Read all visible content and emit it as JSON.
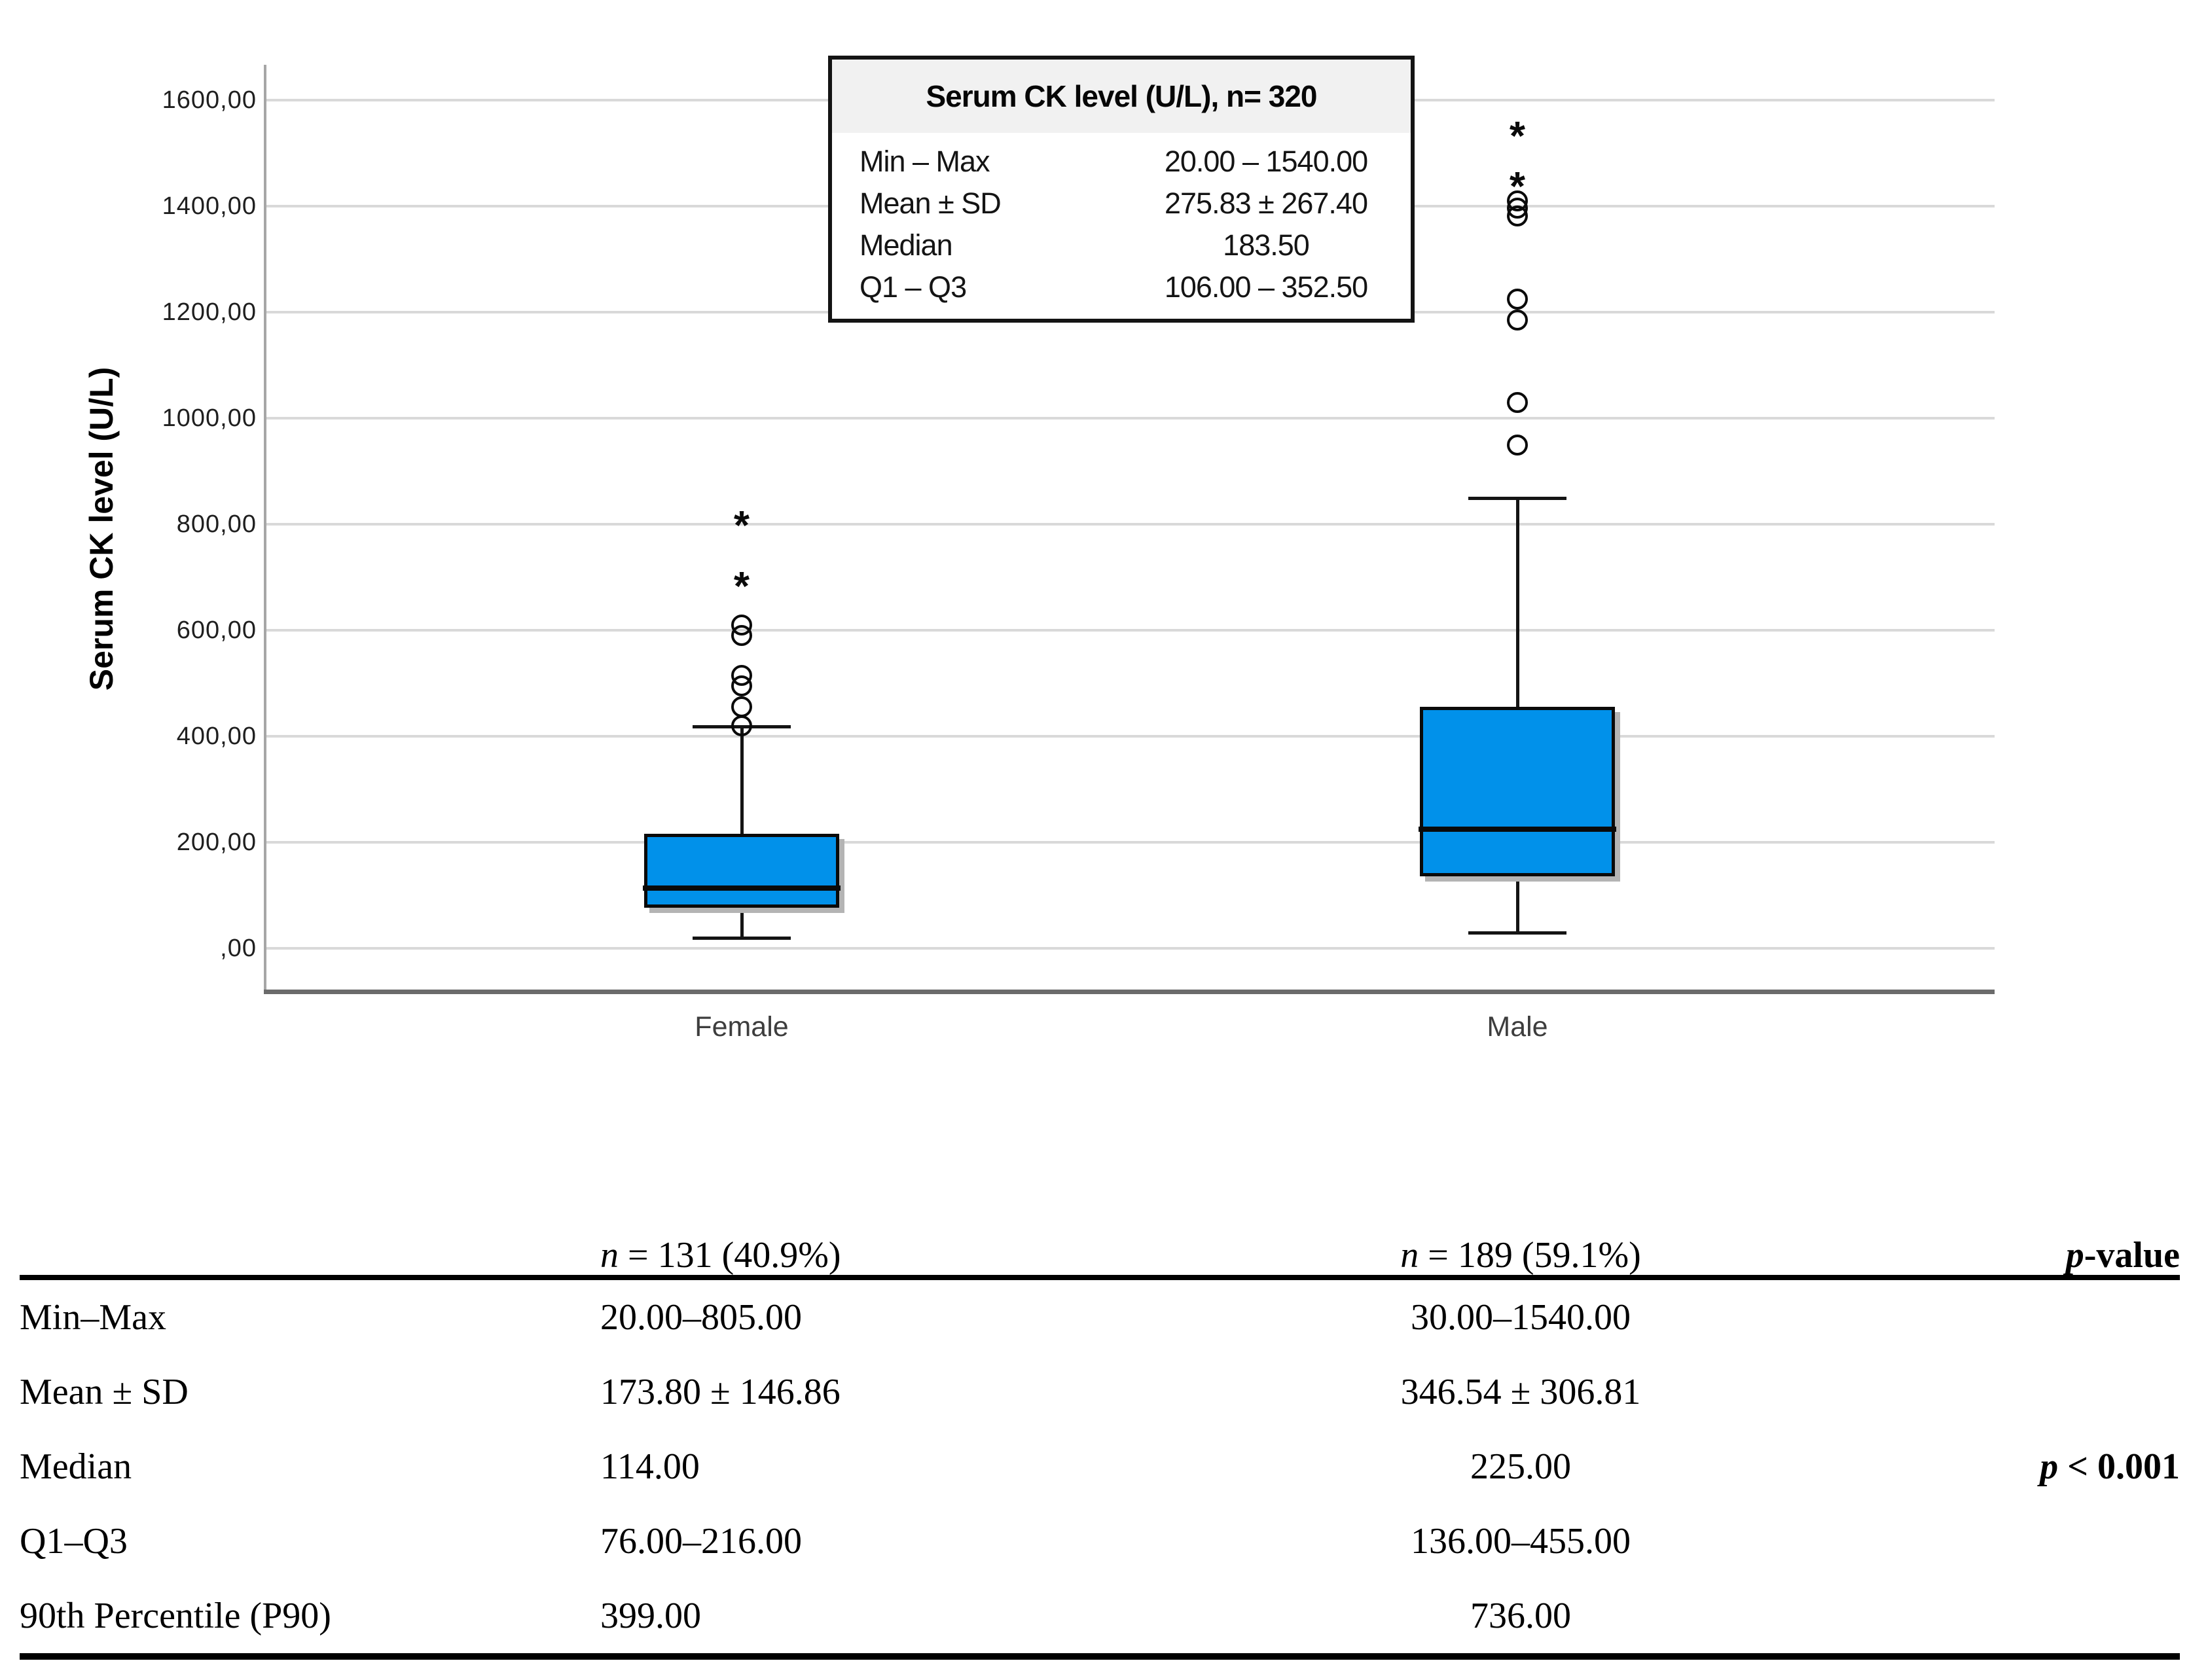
{
  "figure_title": "Serum CK level boxplot by sex with summary statistics",
  "chart_data": {
    "type": "boxplot",
    "ylabel": "Serum CK level (U/L)",
    "ylim": [
      0,
      1600
    ],
    "ytick_step": 200,
    "ytick_labels": [
      ",00",
      "200,00",
      "400,00",
      "600,00",
      "800,00",
      "1000,00",
      "1200,00",
      "1400,00",
      "1600,00"
    ],
    "grid": "horizontal-light-gray",
    "categories": [
      "Female",
      "Male"
    ],
    "series": [
      {
        "name": "Female",
        "whisker_low": 20,
        "q1": 76,
        "median": 114,
        "q3": 216,
        "whisker_high": 418,
        "outliers_circle": [
          420,
          455,
          495,
          515,
          590,
          610
        ],
        "outliers_extreme": [
          690,
          805
        ]
      },
      {
        "name": "Male",
        "whisker_low": 30,
        "q1": 136,
        "median": 225,
        "q3": 455,
        "whisker_high": 850,
        "outliers_circle": [
          950,
          1030,
          1185,
          1225,
          1382,
          1396,
          1410
        ],
        "outliers_extreme": [
          1445,
          1540
        ]
      }
    ],
    "colors": {
      "box_fill": "#0191ea",
      "box_border": "#0a0a0a",
      "median": "#0a0a0a",
      "gridline": "#d9d9d9",
      "axis_left": "#a6a6a6",
      "axis_bottom": "#6b6b6b"
    }
  },
  "inset": {
    "title": "Serum CK level (U/L), n= 320",
    "rows": [
      {
        "label": "Min – Max",
        "value": "20.00 – 1540.00"
      },
      {
        "label": "Mean ± SD",
        "value": "275.83 ± 267.40"
      },
      {
        "label": "Median",
        "value": "183.50"
      },
      {
        "label": "Q1 – Q3",
        "value": "106.00 – 352.50"
      }
    ]
  },
  "table": {
    "header": {
      "col1": {
        "sym": "n",
        "rest": " = 131 (40.9%)"
      },
      "col2": {
        "sym": "n",
        "rest": " = 189 (59.1%)"
      },
      "col3": {
        "sym": "p",
        "rest": "-value"
      }
    },
    "rows": [
      {
        "label": "Min–Max",
        "col1": "20.00–805.00",
        "col2": "30.00–1540.00"
      },
      {
        "label": "Mean ± SD",
        "col1": "173.80 ± 146.86",
        "col2": "346.54 ± 306.81"
      },
      {
        "label": "Median",
        "col1": "114.00",
        "col2": "225.00",
        "p_sym": "p",
        "p_rest": " < 0.001"
      },
      {
        "label": "Q1–Q3",
        "col1": "76.00–216.00",
        "col2": "136.00–455.00"
      },
      {
        "label": "90th Percentile (P90)",
        "col1": "399.00",
        "col2": "736.00"
      }
    ]
  }
}
